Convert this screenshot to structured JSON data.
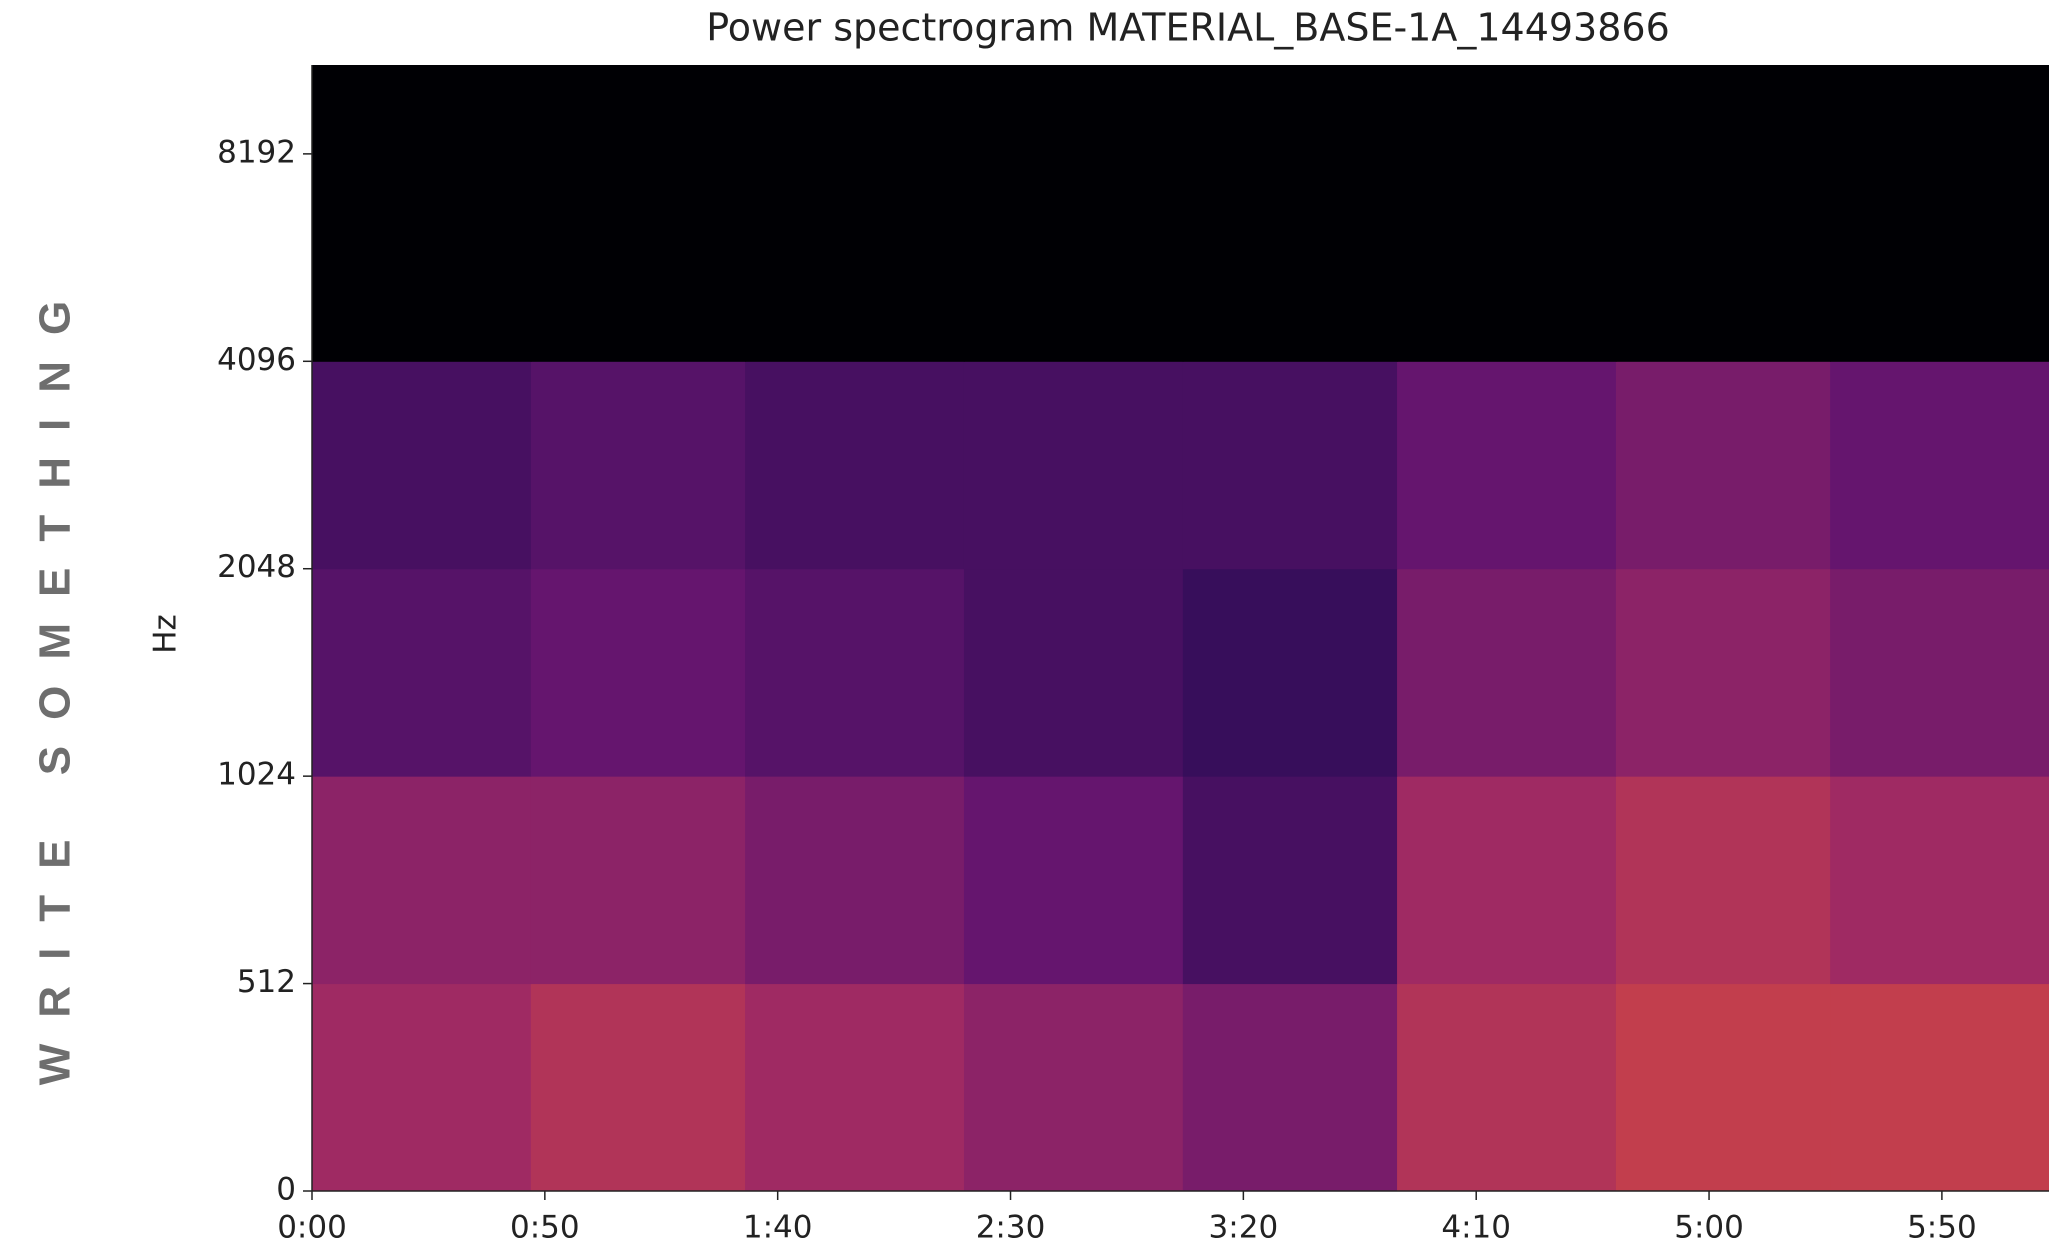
{
  "chart_data": {
    "type": "spectrogram",
    "title": "Power spectrogram MATERIAL_BASE-1A_14493866",
    "y_label": "Hz",
    "side_text": "WRITE SOMETHING",
    "y_scale": "symlog",
    "linthresh": 512,
    "xlim": [
      0,
      373
    ],
    "ylim": [
      0,
      11025
    ],
    "xticks": [
      {
        "value": 0,
        "label": "0:00"
      },
      {
        "value": 50,
        "label": "0:50"
      },
      {
        "value": 100,
        "label": "1:40"
      },
      {
        "value": 150,
        "label": "2:30"
      },
      {
        "value": 200,
        "label": "3:20"
      },
      {
        "value": 250,
        "label": "4:10"
      },
      {
        "value": 300,
        "label": "5:00"
      },
      {
        "value": 350,
        "label": "5:50"
      }
    ],
    "yticks": [
      0,
      512,
      1024,
      2048,
      4096,
      8192
    ],
    "time_edges": [
      0,
      47,
      93,
      140,
      187,
      233,
      280,
      326,
      373
    ],
    "freq_edges": [
      0,
      512,
      1024,
      2048,
      4096,
      11025
    ],
    "values": [
      [
        0.55,
        0.6,
        0.55,
        0.5,
        0.45,
        0.6,
        0.65,
        0.65
      ],
      [
        0.5,
        0.5,
        0.45,
        0.4,
        0.3,
        0.55,
        0.6,
        0.55
      ],
      [
        0.35,
        0.4,
        0.35,
        0.3,
        0.25,
        0.45,
        0.5,
        0.45
      ],
      [
        0.3,
        0.35,
        0.3,
        0.3,
        0.3,
        0.4,
        0.45,
        0.4
      ],
      [
        0,
        0,
        0,
        0,
        0,
        0,
        0,
        0
      ]
    ]
  }
}
